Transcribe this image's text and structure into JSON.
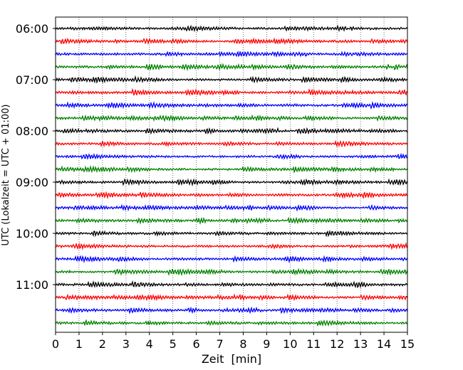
{
  "chart_data": {
    "type": "line",
    "title": "",
    "xlabel": "Zeit  [min]",
    "ylabel": "UTC (Lokalzeit = UTC + 01:00)",
    "xlim": [
      0,
      15
    ],
    "x_ticks": [
      "0",
      "1",
      "2",
      "3",
      "4",
      "5",
      "6",
      "7",
      "8",
      "9",
      "10",
      "11",
      "12",
      "13",
      "14",
      "15"
    ],
    "y_tick_labels": [
      "06:00",
      "07:00",
      "08:00",
      "09:00",
      "10:00",
      "11:00"
    ],
    "grid": "vertical dotted at each minute",
    "trace_interval_min": 15,
    "color_cycle": [
      "#000000",
      "#ff0000",
      "#0000ff",
      "#008000"
    ],
    "series": [
      {
        "name": "06:00"
      },
      {
        "name": "06:15"
      },
      {
        "name": "06:30"
      },
      {
        "name": "06:45"
      },
      {
        "name": "07:00"
      },
      {
        "name": "07:15"
      },
      {
        "name": "07:30"
      },
      {
        "name": "07:45"
      },
      {
        "name": "08:00"
      },
      {
        "name": "08:15"
      },
      {
        "name": "08:30"
      },
      {
        "name": "08:45"
      },
      {
        "name": "09:00"
      },
      {
        "name": "09:15"
      },
      {
        "name": "09:30"
      },
      {
        "name": "09:45"
      },
      {
        "name": "10:00"
      },
      {
        "name": "10:15"
      },
      {
        "name": "10:30"
      },
      {
        "name": "10:45"
      },
      {
        "name": "11:00"
      },
      {
        "name": "11:15"
      },
      {
        "name": "11:30"
      },
      {
        "name": "11:45"
      }
    ]
  }
}
